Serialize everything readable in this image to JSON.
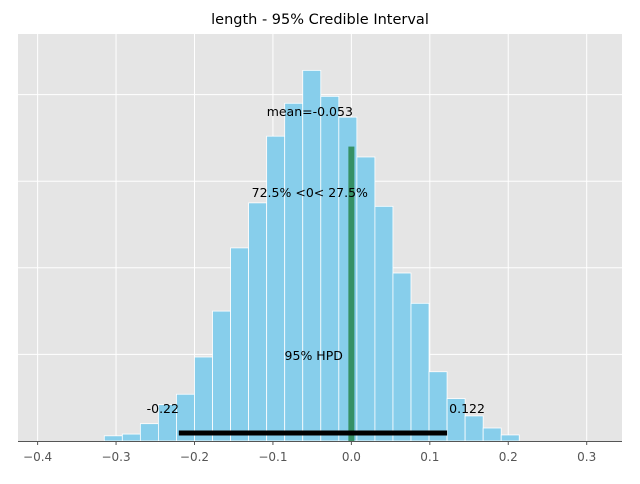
{
  "chart_data": {
    "type": "bar",
    "title": "length - 95% Credible Interval",
    "xlabel": "",
    "ylabel": "",
    "xlim": [
      -0.425,
      0.345
    ],
    "ylim": [
      0,
      470
    ],
    "x_ticks": [
      -0.4,
      -0.3,
      -0.2,
      -0.1,
      0.0,
      0.1,
      0.2,
      0.3
    ],
    "x_tick_labels": [
      "−0.4",
      "−0.3",
      "−0.2",
      "−0.1",
      "0.0",
      "0.1",
      "0.2",
      "0.3"
    ],
    "y_gridlines": [
      100,
      200,
      300,
      400
    ],
    "grid": true,
    "bins": [
      {
        "start": -0.315,
        "end": -0.292,
        "count": 6
      },
      {
        "start": -0.292,
        "end": -0.269,
        "count": 8
      },
      {
        "start": -0.269,
        "end": -0.246,
        "count": 20
      },
      {
        "start": -0.246,
        "end": -0.223,
        "count": 42
      },
      {
        "start": -0.223,
        "end": -0.2,
        "count": 54
      },
      {
        "start": -0.2,
        "end": -0.177,
        "count": 97
      },
      {
        "start": -0.177,
        "end": -0.154,
        "count": 150
      },
      {
        "start": -0.154,
        "end": -0.131,
        "count": 223
      },
      {
        "start": -0.131,
        "end": -0.108,
        "count": 275
      },
      {
        "start": -0.108,
        "end": -0.085,
        "count": 352
      },
      {
        "start": -0.085,
        "end": -0.062,
        "count": 390
      },
      {
        "start": -0.062,
        "end": -0.039,
        "count": 428
      },
      {
        "start": -0.039,
        "end": -0.016,
        "count": 398
      },
      {
        "start": -0.016,
        "end": 0.007,
        "count": 374
      },
      {
        "start": 0.007,
        "end": 0.03,
        "count": 328
      },
      {
        "start": 0.03,
        "end": 0.053,
        "count": 271
      },
      {
        "start": 0.053,
        "end": 0.076,
        "count": 194
      },
      {
        "start": 0.076,
        "end": 0.099,
        "count": 159
      },
      {
        "start": 0.099,
        "end": 0.122,
        "count": 80
      },
      {
        "start": 0.122,
        "end": 0.145,
        "count": 49
      },
      {
        "start": 0.145,
        "end": 0.168,
        "count": 29
      },
      {
        "start": 0.168,
        "end": 0.191,
        "count": 15
      },
      {
        "start": 0.191,
        "end": 0.214,
        "count": 7
      }
    ],
    "bar_color": "#87ceeb",
    "reference_value": 0.0,
    "reference_top": 340,
    "reference_color": "#2e8b57",
    "hpd": {
      "low": -0.22,
      "high": 0.122,
      "color": "#000000"
    },
    "annotations": {
      "mean_label": "mean=-0.053",
      "ref_label": "72.5% <0< 27.5%",
      "hpd_label": "95% HPD",
      "hpd_low_label": "-0.22",
      "hpd_high_label": "0.122"
    },
    "colors": {
      "plot_background": "#e5e5e5",
      "grid": "#ffffff",
      "axis": "#555555"
    }
  }
}
